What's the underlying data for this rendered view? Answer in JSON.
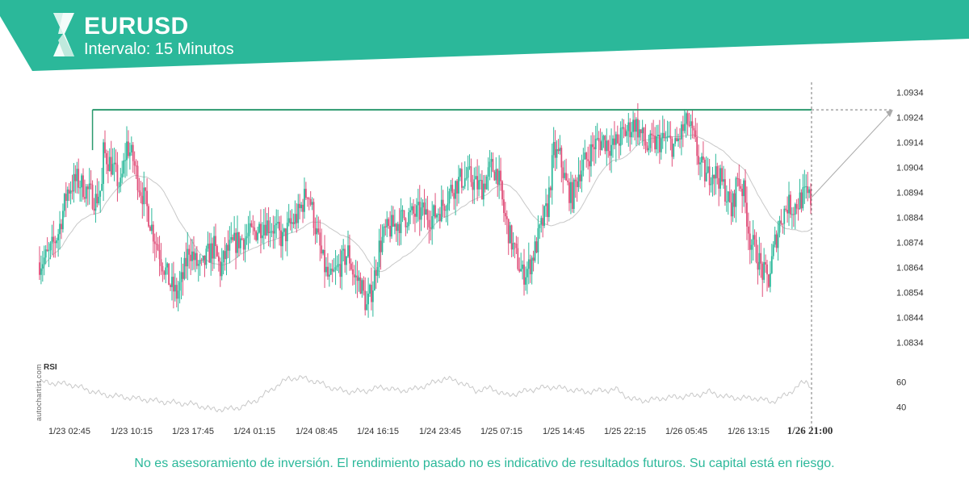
{
  "header": {
    "symbol": "EURUSD",
    "interval": "Intervalo: 15 Minutos",
    "brand_color": "#2bb89a"
  },
  "watermark": "autochartist.com",
  "disclaimer": "No es asesoramiento de inversión. El rendimiento pasado no es indicativo de resultados futuros. Su capital está en riesgo.",
  "colors": {
    "up": "#2bb89a",
    "down": "#e0507a",
    "resistance": "#2b9a6e",
    "ma": "#c8c8c8",
    "rsi": "#c8c8c8",
    "grid": "#e6e6e6",
    "axis_text": "#333333"
  },
  "chart_data": {
    "type": "candlestick",
    "symbol": "EURUSD",
    "ylim": [
      1.0829,
      1.0938
    ],
    "y_ticks": [
      1.0934,
      1.0924,
      1.0914,
      1.0904,
      1.0894,
      1.0884,
      1.0874,
      1.0864,
      1.0854,
      1.0844,
      1.0834
    ],
    "x_ticks": [
      "1/23 02:45",
      "1/23 10:15",
      "1/23 17:45",
      "1/24 01:15",
      "1/24 08:45",
      "1/24 16:15",
      "1/24 23:45",
      "1/25 07:15",
      "1/25 14:45",
      "1/25 22:15",
      "1/26 05:45",
      "1/26 13:15",
      "1/26 21:00"
    ],
    "current_time_label": "1/26 21:00",
    "resistance_level": 1.0927,
    "price_path": [
      [
        0,
        1.0866
      ],
      [
        6,
        1.0869
      ],
      [
        12,
        1.0878
      ],
      [
        18,
        1.0895
      ],
      [
        24,
        1.0899
      ],
      [
        30,
        1.0895
      ],
      [
        36,
        1.0891
      ],
      [
        40,
        1.0896
      ],
      [
        41,
        1.091
      ],
      [
        46,
        1.0905
      ],
      [
        52,
        1.0896
      ],
      [
        56,
        1.0913
      ],
      [
        60,
        1.0907
      ],
      [
        64,
        1.0897
      ],
      [
        68,
        1.089
      ],
      [
        72,
        1.088
      ],
      [
        78,
        1.0868
      ],
      [
        84,
        1.0857
      ],
      [
        88,
        1.0853
      ],
      [
        92,
        1.086
      ],
      [
        96,
        1.0872
      ],
      [
        100,
        1.0866
      ],
      [
        104,
        1.0863
      ],
      [
        108,
        1.0869
      ],
      [
        112,
        1.0872
      ],
      [
        116,
        1.0863
      ],
      [
        120,
        1.087
      ],
      [
        126,
        1.0874
      ],
      [
        132,
        1.0876
      ],
      [
        138,
        1.0878
      ],
      [
        144,
        1.0882
      ],
      [
        150,
        1.088
      ],
      [
        156,
        1.0875
      ],
      [
        160,
        1.088
      ],
      [
        166,
        1.0885
      ],
      [
        172,
        1.0895
      ],
      [
        174,
        1.089
      ],
      [
        178,
        1.0877
      ],
      [
        182,
        1.0866
      ],
      [
        186,
        1.0858
      ],
      [
        192,
        1.0864
      ],
      [
        198,
        1.087
      ],
      [
        202,
        1.086
      ],
      [
        206,
        1.0858
      ],
      [
        210,
        1.0848
      ],
      [
        214,
        1.0857
      ],
      [
        218,
        1.0872
      ],
      [
        222,
        1.0878
      ],
      [
        228,
        1.0881
      ],
      [
        234,
        1.0884
      ],
      [
        240,
        1.0885
      ],
      [
        246,
        1.0886
      ],
      [
        252,
        1.0884
      ],
      [
        258,
        1.0888
      ],
      [
        264,
        1.0895
      ],
      [
        270,
        1.0899
      ],
      [
        276,
        1.09
      ],
      [
        280,
        1.0897
      ],
      [
        284,
        1.0896
      ],
      [
        290,
        1.0904
      ],
      [
        294,
        1.0902
      ],
      [
        298,
        1.0886
      ],
      [
        302,
        1.0876
      ],
      [
        306,
        1.0868
      ],
      [
        310,
        1.0861
      ],
      [
        314,
        1.0864
      ],
      [
        318,
        1.0871
      ],
      [
        322,
        1.088
      ],
      [
        326,
        1.0888
      ],
      [
        330,
        1.091
      ],
      [
        334,
        1.0908
      ],
      [
        338,
        1.0897
      ],
      [
        342,
        1.0892
      ],
      [
        346,
        1.0902
      ],
      [
        352,
        1.0908
      ],
      [
        356,
        1.0913
      ],
      [
        362,
        1.0915
      ],
      [
        368,
        1.0912
      ],
      [
        374,
        1.0917
      ],
      [
        378,
        1.0919
      ],
      [
        382,
        1.0922
      ],
      [
        386,
        1.0917
      ],
      [
        390,
        1.0912
      ],
      [
        396,
        1.0914
      ],
      [
        402,
        1.0915
      ],
      [
        408,
        1.0912
      ],
      [
        412,
        1.0918
      ],
      [
        416,
        1.0922
      ],
      [
        420,
        1.0915
      ],
      [
        424,
        1.0905
      ],
      [
        428,
        1.09
      ],
      [
        432,
        1.0903
      ],
      [
        436,
        1.09
      ],
      [
        440,
        1.0895
      ],
      [
        444,
        1.0886
      ],
      [
        448,
        1.09
      ],
      [
        452,
        1.0894
      ],
      [
        456,
        1.0875
      ],
      [
        460,
        1.087
      ],
      [
        464,
        1.0862
      ],
      [
        468,
        1.0859
      ],
      [
        472,
        1.0874
      ],
      [
        476,
        1.0884
      ],
      [
        480,
        1.0889
      ],
      [
        484,
        1.0888
      ],
      [
        488,
        1.0891
      ],
      [
        492,
        1.0893
      ],
      [
        495,
        1.0891
      ]
    ],
    "rsi": {
      "label": "RSI",
      "ylim": [
        35,
        70
      ],
      "ticks": [
        60,
        40
      ],
      "path": [
        [
          0,
          60
        ],
        [
          20,
          58
        ],
        [
          40,
          50
        ],
        [
          60,
          47
        ],
        [
          80,
          44
        ],
        [
          100,
          42
        ],
        [
          110,
          38
        ],
        [
          120,
          38
        ],
        [
          130,
          40
        ],
        [
          140,
          46
        ],
        [
          150,
          55
        ],
        [
          160,
          63
        ],
        [
          170,
          63
        ],
        [
          180,
          59
        ],
        [
          190,
          54
        ],
        [
          200,
          52
        ],
        [
          210,
          53
        ],
        [
          220,
          56
        ],
        [
          230,
          53
        ],
        [
          240,
          54
        ],
        [
          250,
          58
        ],
        [
          260,
          63
        ],
        [
          270,
          60
        ],
        [
          280,
          53
        ],
        [
          290,
          55
        ],
        [
          300,
          49
        ],
        [
          310,
          52
        ],
        [
          320,
          55
        ],
        [
          330,
          56
        ],
        [
          340,
          54
        ],
        [
          350,
          52
        ],
        [
          360,
          53
        ],
        [
          370,
          54
        ],
        [
          380,
          46
        ],
        [
          390,
          45
        ],
        [
          400,
          47
        ],
        [
          410,
          48
        ],
        [
          420,
          49
        ],
        [
          430,
          52
        ],
        [
          440,
          48
        ],
        [
          450,
          47
        ],
        [
          460,
          47
        ],
        [
          470,
          44
        ],
        [
          480,
          50
        ],
        [
          488,
          58
        ],
        [
          492,
          60
        ],
        [
          495,
          57
        ]
      ]
    }
  }
}
